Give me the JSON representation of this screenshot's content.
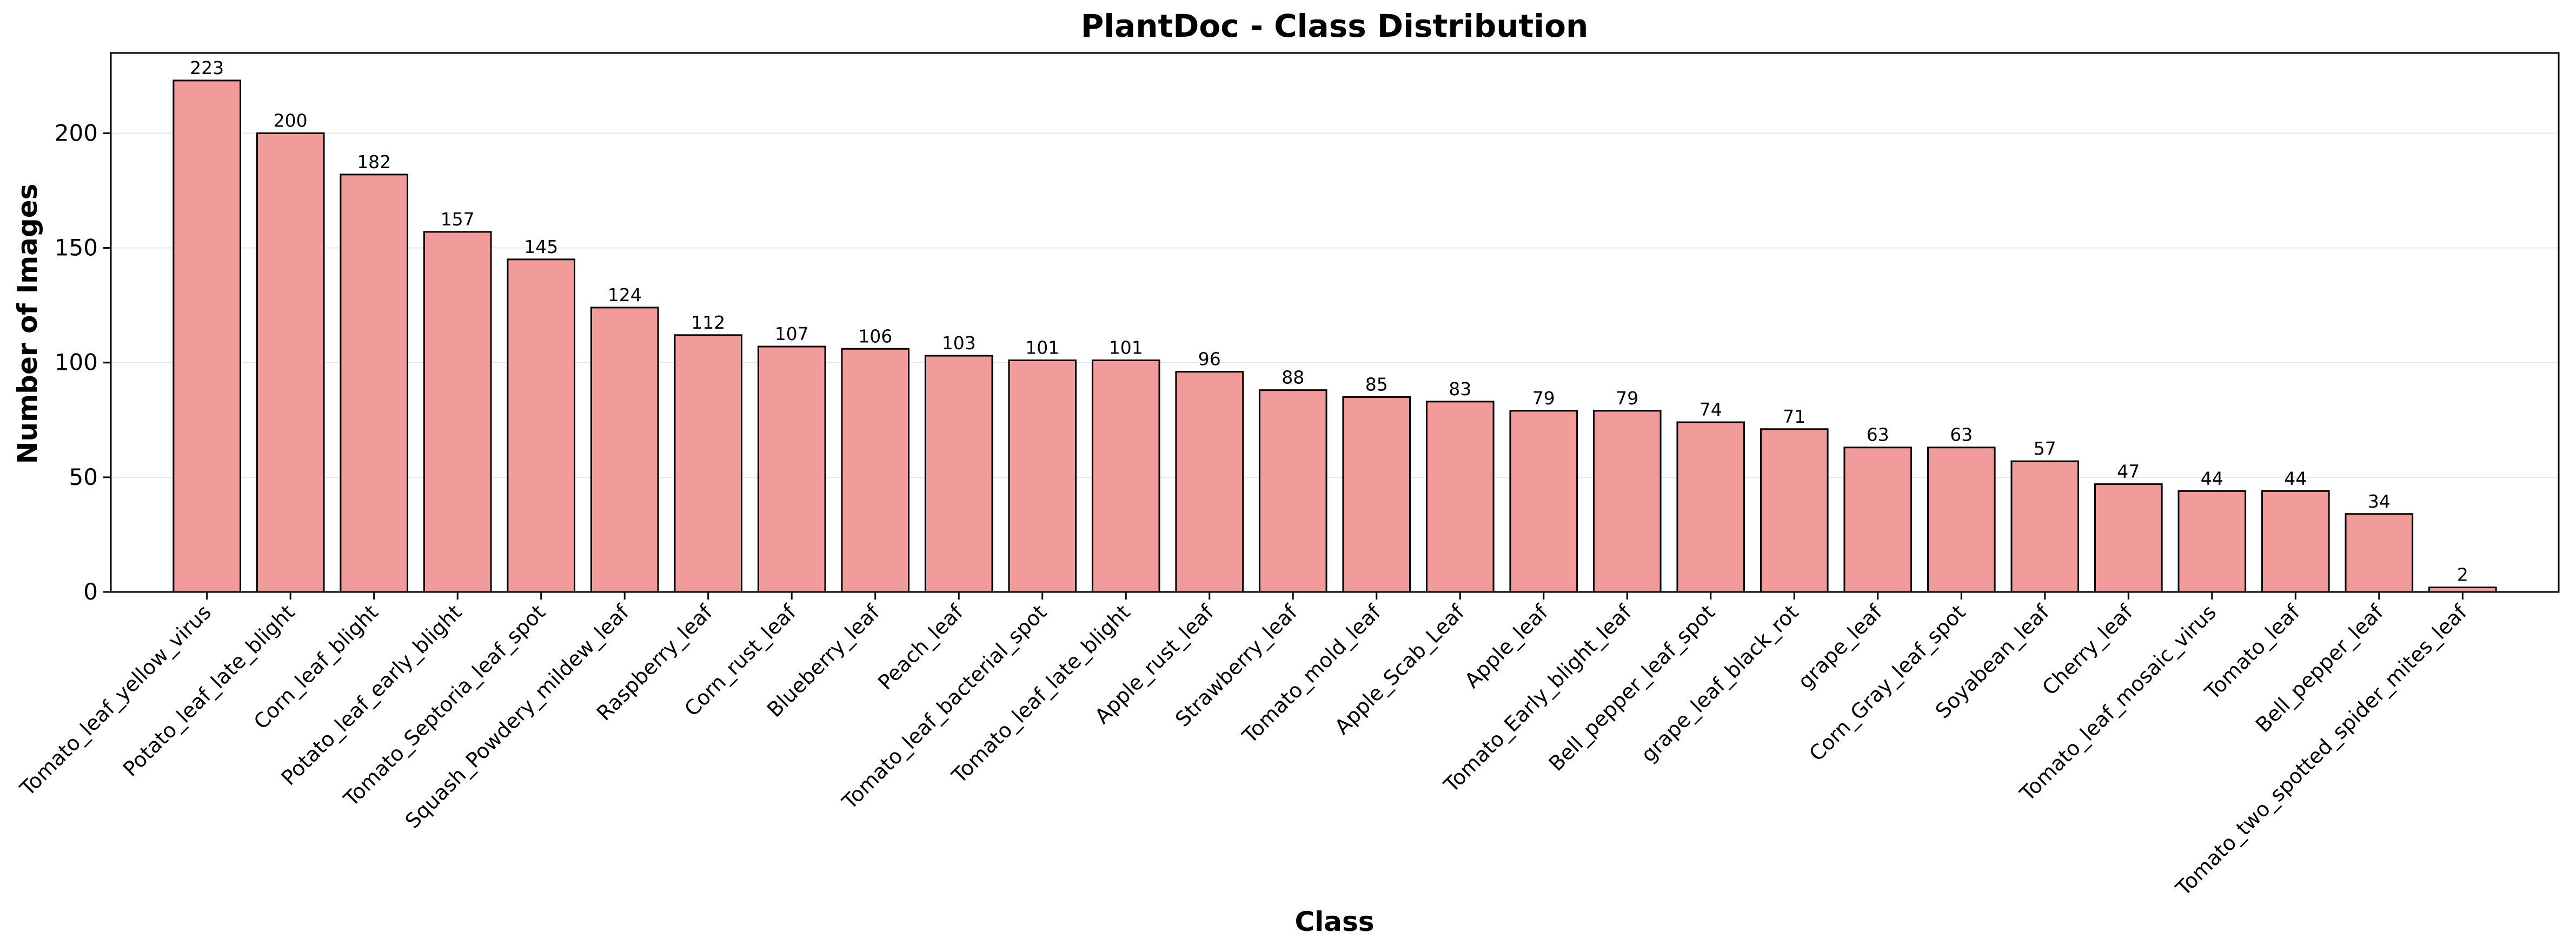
{
  "chart_data": {
    "type": "bar",
    "title": "PlantDoc - Class Distribution",
    "xlabel": "Class",
    "ylabel": "Number of Images",
    "ylim": [
      0,
      235
    ],
    "yticks": [
      0,
      50,
      100,
      150,
      200
    ],
    "grid": "y",
    "bar_color": "#f29b9b",
    "bar_edge_color": "#000000",
    "categories": [
      "Tomato_leaf_yellow_virus",
      "Potato_leaf_late_blight",
      "Corn_leaf_blight",
      "Potato_leaf_early_blight",
      "Tomato_Septoria_leaf_spot",
      "Squash_Powdery_mildew_leaf",
      "Raspberry_leaf",
      "Corn_rust_leaf",
      "Blueberry_leaf",
      "Peach_leaf",
      "Tomato_leaf_bacterial_spot",
      "Tomato_leaf_late_blight",
      "Apple_rust_leaf",
      "Strawberry_leaf",
      "Tomato_mold_leaf",
      "Apple_Scab_Leaf",
      "Apple_leaf",
      "Tomato_Early_blight_leaf",
      "Bell_pepper_leaf_spot",
      "grape_leaf_black_rot",
      "grape_leaf",
      "Corn_Gray_leaf_spot",
      "Soyabean_leaf",
      "Cherry_leaf",
      "Tomato_leaf_mosaic_virus",
      "Tomato_leaf",
      "Bell_pepper_leaf",
      "Tomato_two_spotted_spider_mites_leaf"
    ],
    "values": [
      223,
      200,
      182,
      157,
      145,
      124,
      112,
      107,
      106,
      103,
      101,
      101,
      96,
      88,
      85,
      83,
      79,
      79,
      74,
      71,
      63,
      63,
      57,
      47,
      44,
      44,
      34,
      2
    ]
  }
}
